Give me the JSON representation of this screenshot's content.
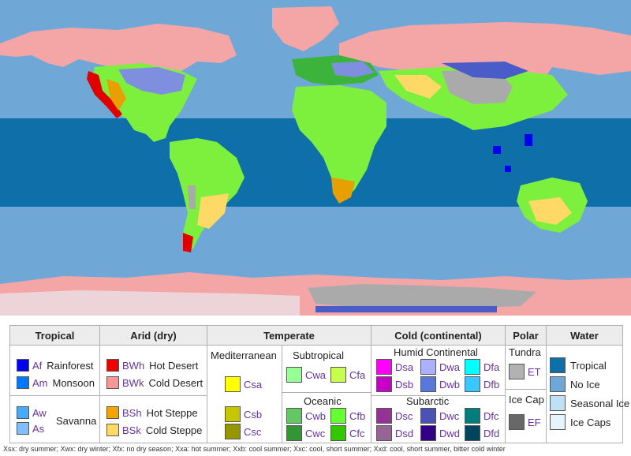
{
  "map": {
    "colors": {
      "ocean_tropical": "#0f6fa8",
      "ocean_noice": "#6fa8d6",
      "seasonal_ice": "#bfe0f5",
      "ice_caps": "#e6f4fb",
      "tundra": "#aaaaaa",
      "icecap_land": "#666666",
      "cold_desert": "#f4a6a6",
      "hot_desert": "#e00000",
      "savanna": "#7cf03c",
      "steppe_hot": "#e8a000",
      "steppe_cold": "#ffd966",
      "subarctic": "#4a5cc8",
      "continental": "#7f8fe0",
      "oceanic": "#3cb43c",
      "rainforest": "#0000ee"
    }
  },
  "legend": {
    "headers": {
      "tropical": "Tropical",
      "arid": "Arid (dry)",
      "temperate": "Temperate",
      "cold": "Cold (continental)",
      "polar": "Polar",
      "water": "Water"
    },
    "tropical": {
      "af": {
        "code": "Af",
        "desc": "Rainforest",
        "color": "#0000ee"
      },
      "am": {
        "code": "Am",
        "desc": "Monsoon",
        "color": "#0077ff"
      },
      "aw": {
        "code": "Aw",
        "color": "#46a9fa"
      },
      "as": {
        "code": "As",
        "color": "#7fbfff"
      },
      "savanna": "Savanna"
    },
    "arid": {
      "bwh": {
        "code": "BWh",
        "desc": "Hot Desert",
        "color": "#ee0000"
      },
      "bwk": {
        "code": "BWk",
        "desc": "Cold Desert",
        "color": "#f89896"
      },
      "bsh": {
        "code": "BSh",
        "desc": "Hot Steppe",
        "color": "#f5a301"
      },
      "bsk": {
        "code": "BSk",
        "desc": "Cold Steppe",
        "color": "#ffdb63"
      }
    },
    "temperate": {
      "mediterranean": "Mediterranean",
      "subtropical": "Subtropical",
      "oceanic": "Oceanic",
      "csa": {
        "code": "Csa",
        "color": "#ffff00"
      },
      "csb": {
        "code": "Csb",
        "color": "#c6c700"
      },
      "csc": {
        "code": "Csc",
        "color": "#969600"
      },
      "cwa": {
        "code": "Cwa",
        "color": "#96ff96"
      },
      "cfa": {
        "code": "Cfa",
        "color": "#c6ff4e"
      },
      "cwb": {
        "code": "Cwb",
        "color": "#63c764"
      },
      "cfb": {
        "code": "Cfb",
        "color": "#66ff33"
      },
      "cwc": {
        "code": "Cwc",
        "color": "#329633"
      },
      "cfc": {
        "code": "Cfc",
        "color": "#33c701"
      }
    },
    "cold": {
      "humid_continental": "Humid Continental",
      "subarctic": "Subarctic",
      "dsa": {
        "code": "Dsa",
        "color": "#ff00fe"
      },
      "dwa": {
        "code": "Dwa",
        "color": "#abb1ff"
      },
      "dfa": {
        "code": "Dfa",
        "color": "#00ffff"
      },
      "dsb": {
        "code": "Dsb",
        "color": "#c600c7"
      },
      "dwb": {
        "code": "Dwb",
        "color": "#5a77db"
      },
      "dfb": {
        "code": "Dfb",
        "color": "#38c7ff"
      },
      "dsc": {
        "code": "Dsc",
        "color": "#963295"
      },
      "dwc": {
        "code": "Dwc",
        "color": "#4c51b5"
      },
      "dfc": {
        "code": "Dfc",
        "color": "#007e7d"
      },
      "dsd": {
        "code": "Dsd",
        "color": "#966495"
      },
      "dwd": {
        "code": "Dwd",
        "color": "#320087"
      },
      "dfd": {
        "code": "Dfd",
        "color": "#00455e"
      }
    },
    "polar": {
      "tundra": "Tundra",
      "ice_cap": "Ice Cap",
      "et": {
        "code": "ET",
        "color": "#b2b2b2"
      },
      "ef": {
        "code": "EF",
        "color": "#686868"
      }
    },
    "water": {
      "tropical": {
        "desc": "Tropical",
        "color": "#0f6fa8"
      },
      "no_ice": {
        "desc": "No Ice",
        "color": "#6fa8d6"
      },
      "seasonal_ice": {
        "desc": "Seasonal Ice",
        "color": "#bfe0f5"
      },
      "ice_caps": {
        "desc": "Ice Caps",
        "color": "#e6f4fb"
      }
    }
  },
  "footnote": "Xsx: dry summer; Xwx: dry winter; Xfx: no dry season; Xxa: hot summer; Xxb: cool summer; Xxc: cool, short summer; Xxd: cool, short summer, bitter cold winter"
}
